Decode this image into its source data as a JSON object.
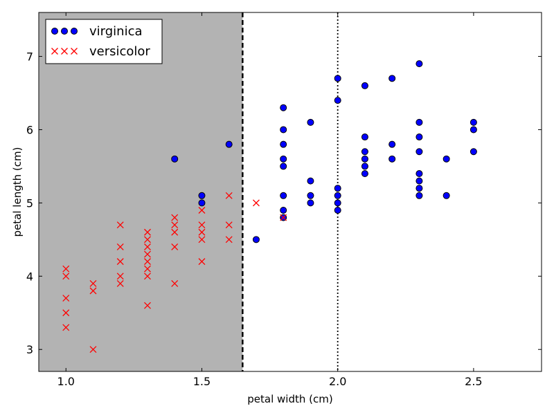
{
  "chart_data": {
    "type": "scatter",
    "xlabel": "petal width (cm)",
    "ylabel": "petal length (cm)",
    "xlim": [
      0.9,
      2.75
    ],
    "ylim": [
      2.7,
      7.6
    ],
    "x_ticks": [
      1.0,
      1.5,
      2.0,
      2.5
    ],
    "x_tick_labels": [
      "1.0",
      "1.5",
      "2.0",
      "2.5"
    ],
    "y_ticks": [
      3,
      4,
      5,
      6,
      7
    ],
    "y_tick_labels": [
      "3",
      "4",
      "5",
      "6",
      "7"
    ],
    "grid": false,
    "legend_position": "top-left",
    "shaded_region": {
      "x_from": 0.9,
      "x_to": 1.65,
      "color": "#b3b3b3"
    },
    "threshold_lines": [
      {
        "x": 1.65,
        "style": "dashed",
        "color": "#000000"
      },
      {
        "x": 2.0,
        "style": "dotted",
        "color": "#000000"
      }
    ],
    "series": [
      {
        "name": "virginica",
        "marker": "circle",
        "color": "#0000ff",
        "points": [
          [
            1.4,
            5.6
          ],
          [
            1.5,
            5.1
          ],
          [
            1.5,
            5.0
          ],
          [
            1.6,
            5.8
          ],
          [
            1.7,
            4.5
          ],
          [
            1.8,
            6.3
          ],
          [
            1.8,
            6.0
          ],
          [
            1.8,
            5.8
          ],
          [
            1.8,
            5.6
          ],
          [
            1.8,
            5.5
          ],
          [
            1.8,
            5.1
          ],
          [
            1.8,
            4.9
          ],
          [
            1.8,
            4.8
          ],
          [
            1.9,
            6.1
          ],
          [
            1.9,
            5.3
          ],
          [
            1.9,
            5.1
          ],
          [
            1.9,
            5.0
          ],
          [
            2.0,
            6.7
          ],
          [
            2.0,
            6.4
          ],
          [
            2.0,
            5.2
          ],
          [
            2.0,
            5.1
          ],
          [
            2.0,
            5.0
          ],
          [
            2.0,
            4.9
          ],
          [
            2.1,
            6.6
          ],
          [
            2.1,
            5.9
          ],
          [
            2.1,
            5.7
          ],
          [
            2.1,
            5.6
          ],
          [
            2.1,
            5.5
          ],
          [
            2.1,
            5.4
          ],
          [
            2.2,
            6.7
          ],
          [
            2.2,
            5.8
          ],
          [
            2.2,
            5.6
          ],
          [
            2.3,
            6.9
          ],
          [
            2.3,
            6.1
          ],
          [
            2.3,
            5.9
          ],
          [
            2.3,
            5.7
          ],
          [
            2.3,
            5.4
          ],
          [
            2.3,
            5.3
          ],
          [
            2.3,
            5.2
          ],
          [
            2.3,
            5.1
          ],
          [
            2.4,
            5.6
          ],
          [
            2.4,
            5.1
          ],
          [
            2.5,
            6.1
          ],
          [
            2.5,
            6.0
          ],
          [
            2.5,
            5.7
          ]
        ]
      },
      {
        "name": "versicolor",
        "marker": "x",
        "color": "#ff0000",
        "points": [
          [
            1.0,
            4.1
          ],
          [
            1.0,
            4.0
          ],
          [
            1.0,
            3.7
          ],
          [
            1.0,
            3.5
          ],
          [
            1.0,
            3.3
          ],
          [
            1.1,
            3.9
          ],
          [
            1.1,
            3.8
          ],
          [
            1.1,
            3.0
          ],
          [
            1.2,
            4.7
          ],
          [
            1.2,
            4.4
          ],
          [
            1.2,
            4.2
          ],
          [
            1.2,
            4.0
          ],
          [
            1.2,
            3.9
          ],
          [
            1.3,
            4.6
          ],
          [
            1.3,
            4.5
          ],
          [
            1.3,
            4.4
          ],
          [
            1.3,
            4.3
          ],
          [
            1.3,
            4.2
          ],
          [
            1.3,
            4.1
          ],
          [
            1.3,
            4.0
          ],
          [
            1.3,
            3.6
          ],
          [
            1.4,
            4.8
          ],
          [
            1.4,
            4.7
          ],
          [
            1.4,
            4.6
          ],
          [
            1.4,
            4.4
          ],
          [
            1.4,
            3.9
          ],
          [
            1.5,
            4.9
          ],
          [
            1.5,
            4.7
          ],
          [
            1.5,
            4.6
          ],
          [
            1.5,
            4.5
          ],
          [
            1.5,
            4.2
          ],
          [
            1.6,
            5.1
          ],
          [
            1.6,
            4.7
          ],
          [
            1.6,
            4.5
          ],
          [
            1.7,
            5.0
          ],
          [
            1.8,
            4.8
          ]
        ]
      }
    ]
  }
}
